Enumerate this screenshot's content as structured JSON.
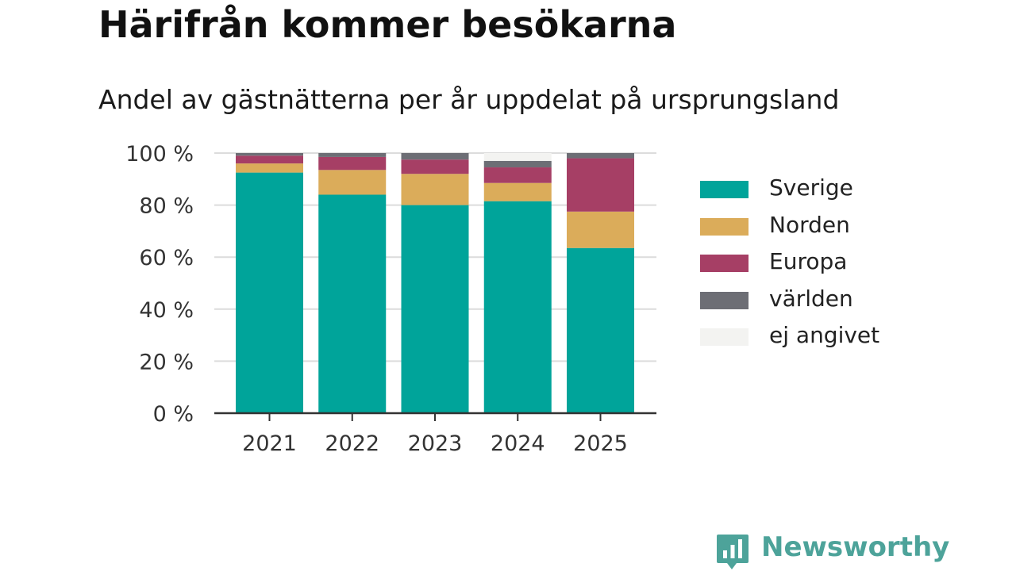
{
  "title": "Härifrån kommer besökarna",
  "subtitle": "Andel av gästnätterna per år uppdelat på ursprungsland",
  "brand": {
    "name": "Newsworthy",
    "icon": "newsworthy-logo-icon",
    "color": "#4da39a"
  },
  "chart_data": {
    "type": "bar",
    "stacked": true,
    "categories": [
      "2021",
      "2022",
      "2023",
      "2024",
      "2025"
    ],
    "ylim": [
      0,
      100
    ],
    "y_ticks": [
      0,
      20,
      40,
      60,
      80,
      100
    ],
    "y_tick_suffix": " %",
    "grid": true,
    "legend_position": "right",
    "xlabel": "",
    "ylabel": "",
    "series": [
      {
        "name": "Sverige",
        "color": "#00a49a",
        "values": [
          92.5,
          84,
          80,
          81.5,
          63.5
        ]
      },
      {
        "name": "Norden",
        "color": "#dbac5a",
        "values": [
          3.5,
          9.5,
          12,
          7,
          14
        ]
      },
      {
        "name": "Europa",
        "color": "#a63f65",
        "values": [
          3,
          5,
          5.5,
          6,
          20.5
        ]
      },
      {
        "name": "världen",
        "color": "#6d6e75",
        "values": [
          1,
          1.5,
          2.5,
          2.5,
          2
        ]
      },
      {
        "name": "ej angivet",
        "color": "#f3f3f1",
        "values": [
          0,
          0,
          0,
          3,
          0
        ]
      }
    ]
  }
}
